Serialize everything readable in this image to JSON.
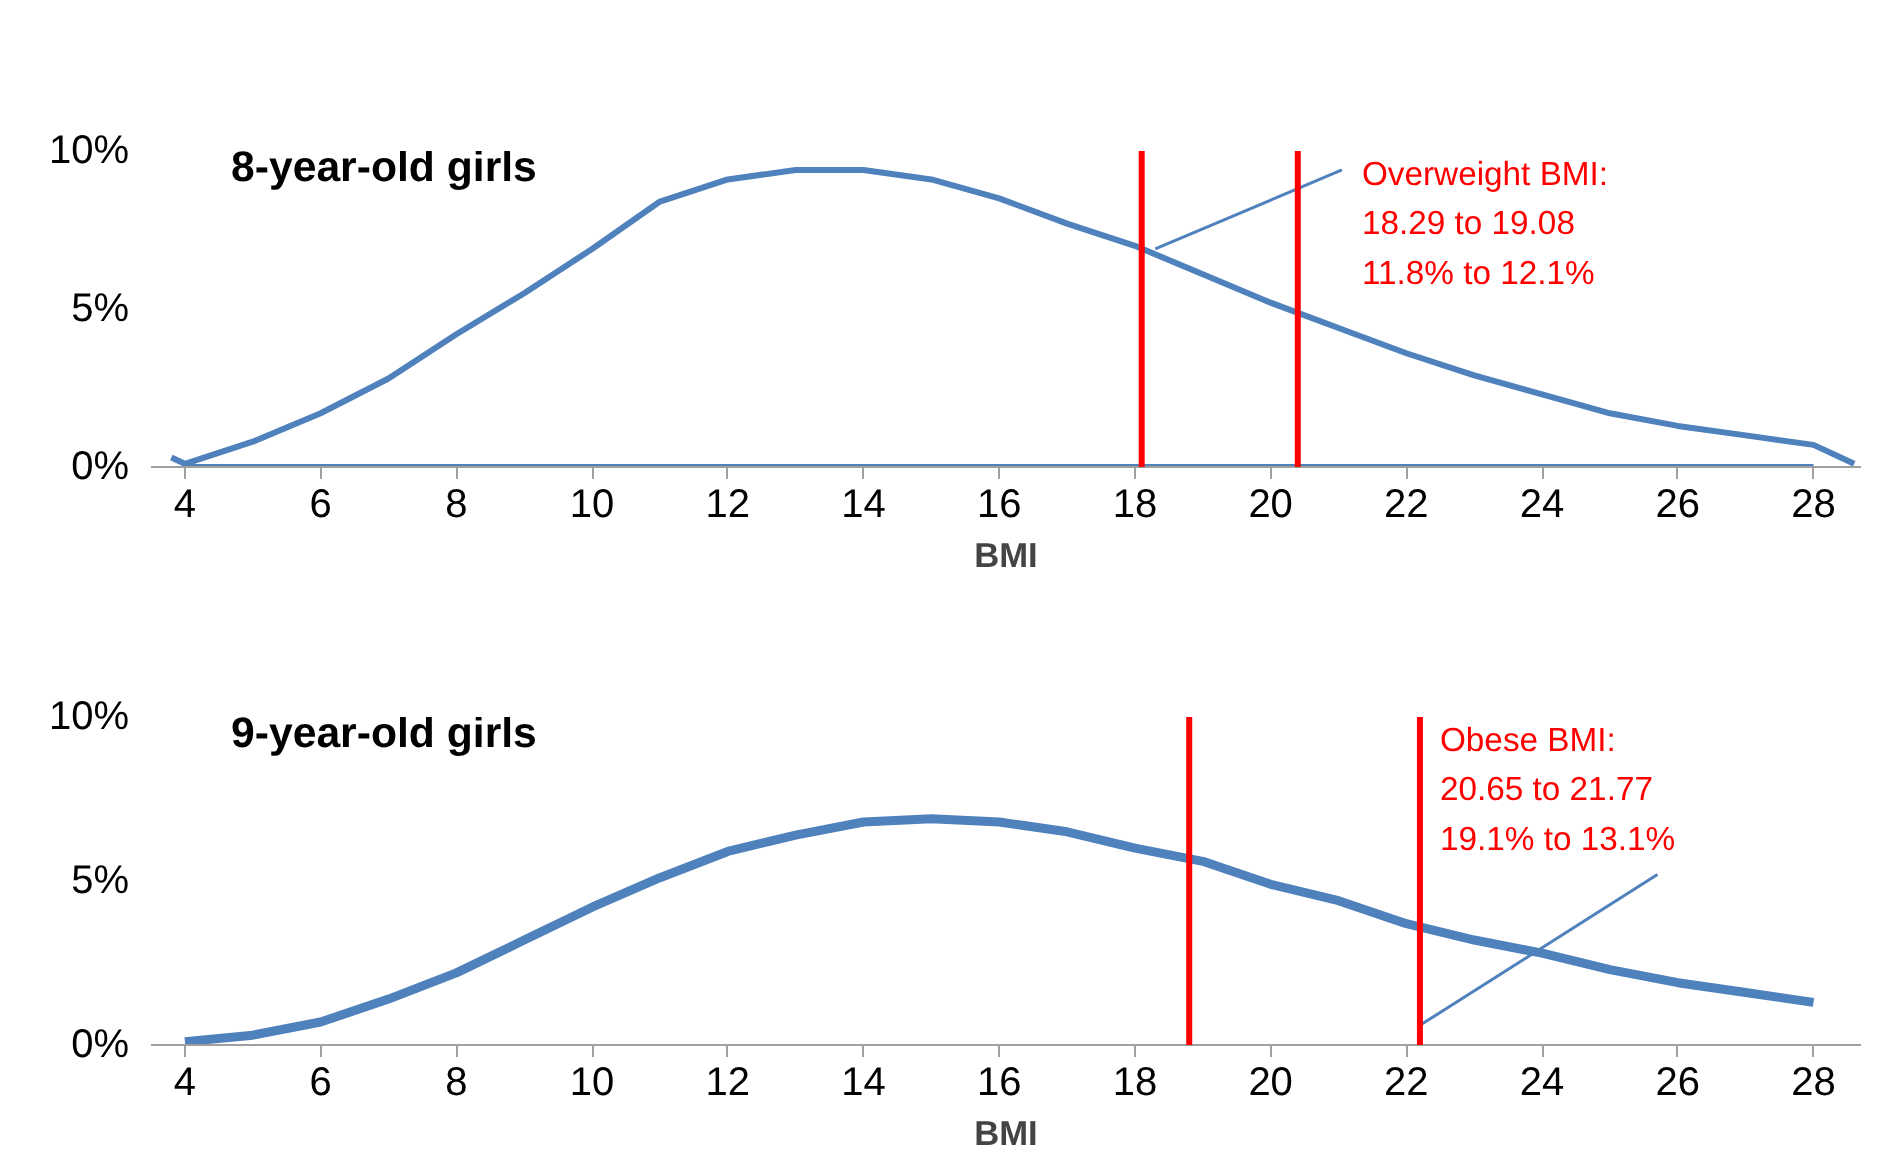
{
  "chart_data": [
    {
      "type": "line",
      "title": "8-year-old girls",
      "xlabel": "BMI",
      "series": [
        {
          "color": "#4f81bd",
          "x": [
            3.8,
            4,
            5,
            6,
            7,
            8,
            9,
            10,
            11,
            12,
            13,
            14,
            15,
            16,
            17,
            18,
            19,
            20,
            21,
            22,
            23,
            24,
            25,
            26,
            27,
            28,
            28.6
          ],
          "values": [
            0.3,
            0.1,
            0.8,
            1.7,
            2.8,
            4.2,
            5.5,
            6.9,
            8.4,
            9.1,
            9.4,
            9.4,
            9.1,
            8.5,
            7.7,
            7.0,
            6.1,
            5.2,
            4.4,
            3.6,
            2.9,
            2.3,
            1.7,
            1.3,
            1.0,
            0.7,
            0.1
          ]
        },
        {
          "color": "#4f81bd",
          "x": [
            4,
            28
          ],
          "values": [
            0,
            0
          ]
        }
      ],
      "xlim": [
        3.5,
        28.7
      ],
      "ylim": [
        0,
        10
      ],
      "xticks": [
        4,
        6,
        8,
        10,
        12,
        14,
        16,
        18,
        20,
        22,
        24,
        26,
        28
      ],
      "yticks": [
        {
          "value": 0,
          "label": "0%"
        },
        {
          "value": 5,
          "label": "5%"
        },
        {
          "value": 10,
          "label": "10%"
        }
      ],
      "ref_lines": [
        {
          "axis": "x",
          "value": 18.1,
          "color": "#ff0000"
        },
        {
          "axis": "x",
          "value": 20.4,
          "color": "#ff0000"
        }
      ],
      "annotations": [
        {
          "text": "Overweight BMI:\n18.29 to 19.08\n11.8% to 12.1%",
          "x": 18.3,
          "y": 6.9
        }
      ],
      "grid": false,
      "line_style": "solid"
    },
    {
      "type": "line",
      "title": "9-year-old girls",
      "xlabel": "BMI",
      "series": [
        {
          "color": "#4f81bd",
          "x": [
            4,
            5,
            6,
            7,
            8,
            9,
            10,
            11,
            12,
            13,
            14,
            15,
            16,
            17,
            18,
            19,
            20,
            21,
            22,
            23,
            24,
            25,
            26,
            27,
            28
          ],
          "values": [
            0.1,
            0.3,
            0.7,
            1.4,
            2.2,
            3.2,
            4.2,
            5.1,
            5.9,
            6.4,
            6.8,
            6.9,
            6.8,
            6.5,
            6.0,
            5.6,
            4.9,
            4.4,
            3.7,
            3.2,
            2.8,
            2.3,
            1.9,
            1.6,
            1.3
          ]
        }
      ],
      "xlim": [
        3.5,
        28.7
      ],
      "ylim": [
        0,
        10
      ],
      "xticks": [
        4,
        6,
        8,
        10,
        12,
        14,
        16,
        18,
        20,
        22,
        24,
        26,
        28
      ],
      "yticks": [
        {
          "value": 0,
          "label": "0%"
        },
        {
          "value": 5,
          "label": "5%"
        },
        {
          "value": 10,
          "label": "10%"
        }
      ],
      "ref_lines": [
        {
          "axis": "x",
          "value": 18.8,
          "color": "#ff0000"
        },
        {
          "axis": "x",
          "value": 22.2,
          "color": "#ff0000"
        }
      ],
      "annotations": [
        {
          "text": "Obese BMI:\n20.65 to 21.77\n19.1% to 13.1%",
          "x": 22.2,
          "y": 0.6
        }
      ],
      "grid": false,
      "line_style": "solid"
    }
  ]
}
